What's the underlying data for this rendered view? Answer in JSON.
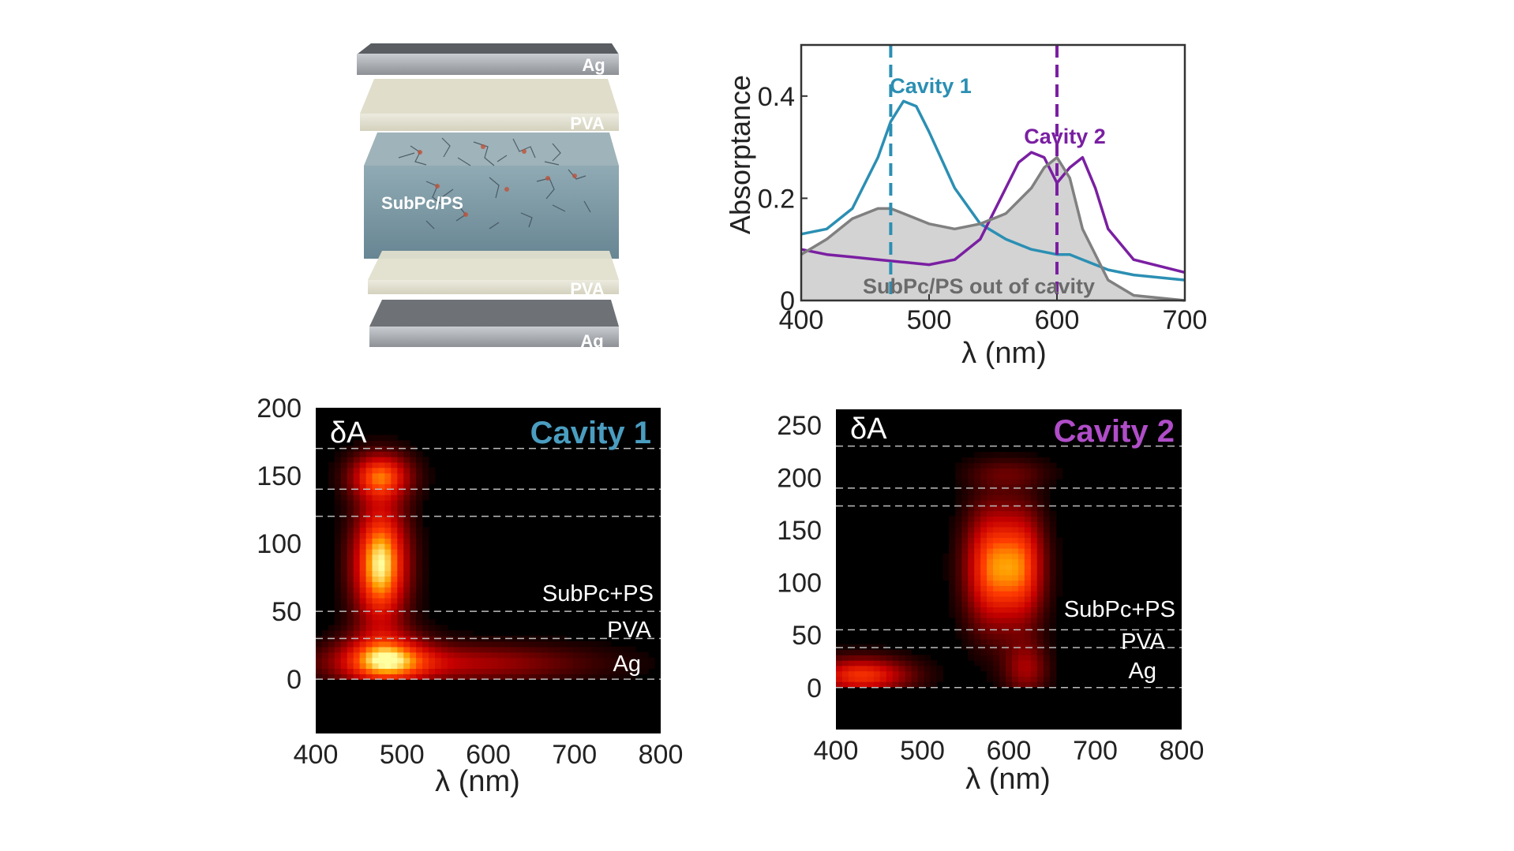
{
  "stack": {
    "layers": [
      "Ag",
      "PVA",
      "SubPc/PS",
      "PVA",
      "Ag"
    ],
    "colors": {
      "ag": "#9a9ea3",
      "pva": "#e6e4d2",
      "active": "#6f8f9b"
    }
  },
  "chart_data": [
    {
      "type": "line",
      "title": "",
      "xlabel": "λ (nm)",
      "ylabel": "Absorptance",
      "xlim": [
        400,
        700
      ],
      "ylim": [
        0,
        0.5
      ],
      "xticks": [
        "400",
        "500",
        "600",
        "700"
      ],
      "yticks": [
        "0",
        "0.2",
        "0.4"
      ],
      "series": [
        {
          "name": "Cavity 1",
          "color": "#2b8fb3",
          "x": [
            400,
            420,
            440,
            460,
            470,
            480,
            490,
            500,
            520,
            540,
            560,
            580,
            600,
            610,
            620,
            640,
            660,
            700
          ],
          "values": [
            0.13,
            0.14,
            0.18,
            0.28,
            0.35,
            0.39,
            0.38,
            0.33,
            0.22,
            0.15,
            0.12,
            0.1,
            0.09,
            0.09,
            0.08,
            0.06,
            0.05,
            0.04
          ]
        },
        {
          "name": "Cavity 2",
          "color": "#7a1fa2",
          "x": [
            400,
            420,
            440,
            460,
            480,
            500,
            520,
            540,
            560,
            570,
            580,
            590,
            600,
            610,
            620,
            630,
            640,
            660,
            700
          ],
          "values": [
            0.1,
            0.09,
            0.085,
            0.08,
            0.075,
            0.07,
            0.08,
            0.12,
            0.22,
            0.27,
            0.29,
            0.28,
            0.23,
            0.26,
            0.28,
            0.22,
            0.14,
            0.08,
            0.055
          ]
        },
        {
          "name": "SubPc/PS out of cavity",
          "color": "#808080",
          "fill": "#d3d3d3",
          "x": [
            400,
            420,
            440,
            460,
            470,
            480,
            500,
            520,
            540,
            560,
            580,
            590,
            600,
            610,
            620,
            640,
            660,
            700
          ],
          "values": [
            0.09,
            0.12,
            0.16,
            0.18,
            0.18,
            0.17,
            0.15,
            0.14,
            0.15,
            0.17,
            0.22,
            0.26,
            0.28,
            0.24,
            0.14,
            0.04,
            0.01,
            0.0
          ]
        }
      ],
      "reference_lines": [
        {
          "x": 470,
          "color": "#2b8fb3"
        },
        {
          "x": 600,
          "color": "#7a1fa2"
        }
      ],
      "annotations": [
        "Cavity 1",
        "Cavity 2",
        "SubPc/PS out of cavity"
      ]
    },
    {
      "type": "heatmap",
      "label": "δA",
      "title": "Cavity 1",
      "title_color": "#4a9dc0",
      "xlabel": "λ (nm)",
      "xlim": [
        400,
        800
      ],
      "ylim": [
        -40,
        200
      ],
      "xticks": [
        "400",
        "500",
        "600",
        "700",
        "800"
      ],
      "yticks": [
        "0",
        "50",
        "100",
        "150",
        "200"
      ],
      "boundaries": [
        0,
        30,
        50,
        120,
        140,
        170
      ],
      "layer_labels": [
        "SubPc+PS",
        "PVA",
        "Ag"
      ],
      "hotspots": [
        {
          "x": 475,
          "y": 85,
          "sx": 22,
          "sy": 30,
          "amp": 1.0
        },
        {
          "x": 475,
          "y": 150,
          "sx": 25,
          "sy": 12,
          "amp": 0.7
        },
        {
          "x": 480,
          "y": 15,
          "sx": 35,
          "sy": 14,
          "amp": 0.7
        },
        {
          "x": 560,
          "y": 12,
          "sx": 110,
          "sy": 10,
          "amp": 0.4
        }
      ]
    },
    {
      "type": "heatmap",
      "label": "δA",
      "title": "Cavity 2",
      "title_color": "#b04dc8",
      "xlabel": "λ (nm)",
      "xlim": [
        400,
        800
      ],
      "ylim": [
        -40,
        265
      ],
      "xticks": [
        "400",
        "500",
        "600",
        "700",
        "800"
      ],
      "yticks": [
        "0",
        "50",
        "100",
        "150",
        "200",
        "250"
      ],
      "boundaries": [
        0,
        38,
        55,
        173,
        190,
        230
      ],
      "layer_labels": [
        "SubPc+PS",
        "PVA",
        "Ag"
      ],
      "hotspots": [
        {
          "x": 580,
          "y": 115,
          "sx": 22,
          "sy": 40,
          "amp": 0.75
        },
        {
          "x": 618,
          "y": 115,
          "sx": 18,
          "sy": 38,
          "amp": 0.6
        },
        {
          "x": 430,
          "y": 12,
          "sx": 40,
          "sy": 12,
          "amp": 0.65
        },
        {
          "x": 620,
          "y": 18,
          "sx": 18,
          "sy": 18,
          "amp": 0.35
        },
        {
          "x": 600,
          "y": 205,
          "sx": 35,
          "sy": 10,
          "amp": 0.18
        }
      ]
    }
  ]
}
